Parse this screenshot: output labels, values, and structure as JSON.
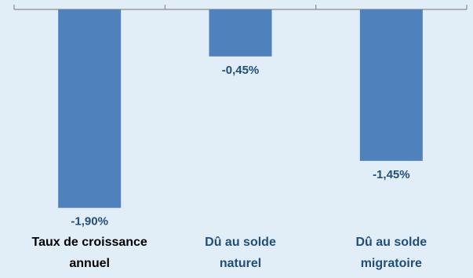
{
  "chart_data": {
    "type": "bar",
    "title": "",
    "xlabel": "",
    "ylabel": "",
    "categories": [
      [
        "Taux de croissance",
        "annuel"
      ],
      [
        "Dû au solde",
        "naturel"
      ],
      [
        "Dû au solde",
        "migratoire"
      ]
    ],
    "values": [
      -1.9,
      -0.45,
      -1.45
    ],
    "value_labels": [
      "-1,90%",
      "-0,45%",
      "-1,45%"
    ],
    "ylim": [
      -2.0,
      0
    ],
    "grid": false,
    "legend": "none"
  },
  "colors": {
    "background": "#e2eef7",
    "bar": "#4f81bd",
    "axis": "#8c8c8c",
    "value_label": "#1f4e79",
    "category_label_first": "#000000",
    "category_label_other": "#1f4e79"
  }
}
